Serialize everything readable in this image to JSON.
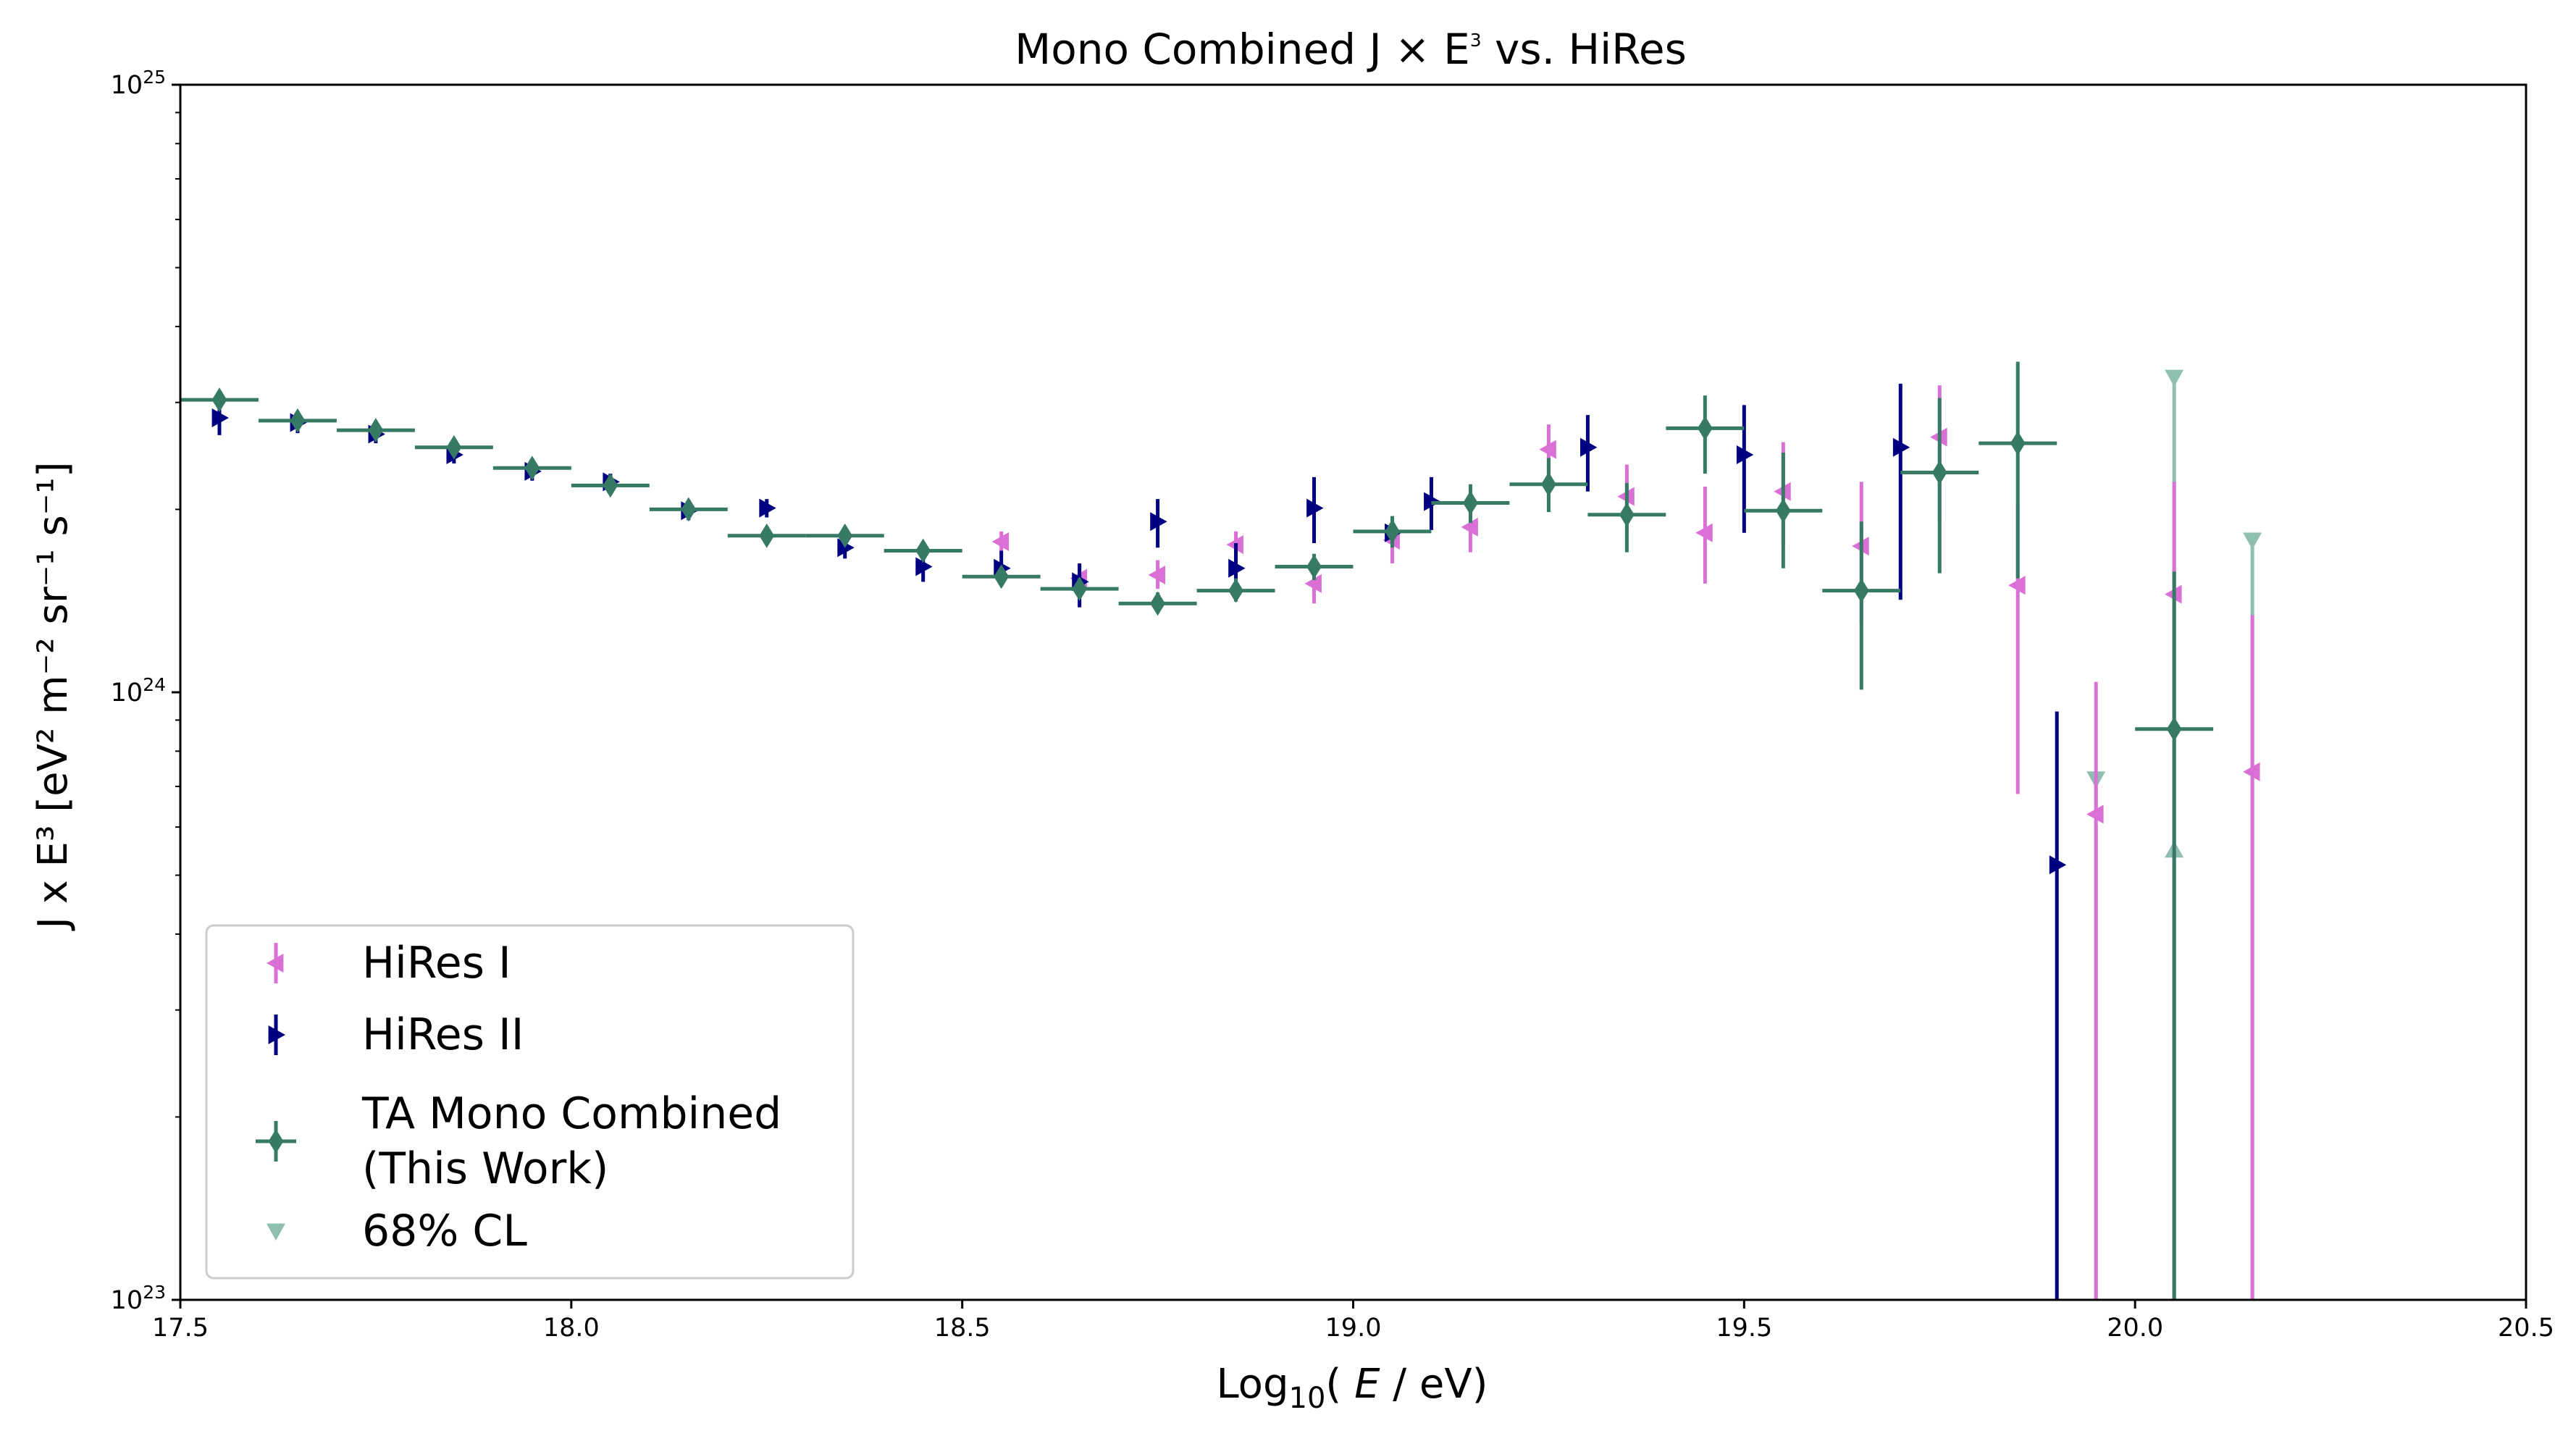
{
  "chart_data": {
    "type": "scatter",
    "title": "Mono Combined J × E³ vs. HiRes",
    "title_parts": {
      "main": "Mono Combined J × E",
      "sup": "3",
      "tail": " vs. HiRes"
    },
    "xlabel": "Log₁₀( E / eV)",
    "xlabel_parts": {
      "pre": "Log",
      "sub": "10",
      "open": "( ",
      "var": "E",
      "post": " / eV)"
    },
    "ylabel": "J x E³ [eV² m⁻² sr⁻¹ s⁻¹]",
    "xlim": [
      17.5,
      20.5
    ],
    "ylim": [
      1e+23,
      1e+25
    ],
    "yscale": "log",
    "grid": false,
    "legend_position": "lower-left",
    "x_ticks": [
      "17.5",
      "18.0",
      "18.5",
      "19.0",
      "19.5",
      "20.0",
      "20.5"
    ],
    "y_ticks": [
      {
        "base": "10",
        "exp": "23",
        "value": 1e+23
      },
      {
        "base": "10",
        "exp": "24",
        "value": 1e+24
      },
      {
        "base": "10",
        "exp": "25",
        "value": 1e+25
      }
    ],
    "series": [
      {
        "name": "HiRes I",
        "marker": "triangle-left",
        "color": "#da70d6",
        "points": [
          {
            "x": 18.55,
            "y": 1.77e+24,
            "ylo": 1.7e+24,
            "yhi": 1.84e+24
          },
          {
            "x": 18.65,
            "y": 1.54e+24,
            "ylo": 1.46e+24,
            "yhi": 1.62e+24
          },
          {
            "x": 18.75,
            "y": 1.56e+24,
            "ylo": 1.48e+24,
            "yhi": 1.65e+24
          },
          {
            "x": 18.85,
            "y": 1.75e+24,
            "ylo": 1.66e+24,
            "yhi": 1.84e+24
          },
          {
            "x": 18.95,
            "y": 1.51e+24,
            "ylo": 1.4e+24,
            "yhi": 1.61e+24
          },
          {
            "x": 19.05,
            "y": 1.78e+24,
            "ylo": 1.63e+24,
            "yhi": 1.93e+24
          },
          {
            "x": 19.15,
            "y": 1.87e+24,
            "ylo": 1.7e+24,
            "yhi": 2.04e+24
          },
          {
            "x": 19.25,
            "y": 2.51e+24,
            "ylo": 2.27e+24,
            "yhi": 2.76e+24
          },
          {
            "x": 19.35,
            "y": 2.1e+24,
            "ylo": 1.85e+24,
            "yhi": 2.37e+24
          },
          {
            "x": 19.45,
            "y": 1.83e+24,
            "ylo": 1.51e+24,
            "yhi": 2.18e+24
          },
          {
            "x": 19.55,
            "y": 2.14e+24,
            "ylo": 1.74e+24,
            "yhi": 2.58e+24
          },
          {
            "x": 19.65,
            "y": 1.74e+24,
            "ylo": 1.3e+24,
            "yhi": 2.22e+24
          },
          {
            "x": 19.75,
            "y": 2.63e+24,
            "ylo": 1.92e+24,
            "yhi": 3.2e+24
          },
          {
            "x": 19.85,
            "y": 1.5e+24,
            "ylo": 6.8e+23,
            "yhi": 2.04e+24
          },
          {
            "x": 19.95,
            "y": 6.3e+23,
            "ylo": 1e+23,
            "yhi": 1.04e+24
          },
          {
            "x": 20.05,
            "y": 1.45e+24,
            "ylo": 1e+23,
            "yhi": 2.22e+24
          },
          {
            "x": 20.15,
            "y": 7.4e+23,
            "ylo": 1e+23,
            "yhi": 1.34e+24
          }
        ]
      },
      {
        "name": "HiRes II",
        "marker": "triangle-right",
        "color": "#000080",
        "points": [
          {
            "x": 17.55,
            "y": 2.83e+24,
            "ylo": 2.65e+24,
            "yhi": 3e+24
          },
          {
            "x": 17.65,
            "y": 2.78e+24,
            "ylo": 2.67e+24,
            "yhi": 2.88e+24
          },
          {
            "x": 17.75,
            "y": 2.66e+24,
            "ylo": 2.57e+24,
            "yhi": 2.75e+24
          },
          {
            "x": 17.85,
            "y": 2.46e+24,
            "ylo": 2.38e+24,
            "yhi": 2.54e+24
          },
          {
            "x": 17.95,
            "y": 2.31e+24,
            "ylo": 2.23e+24,
            "yhi": 2.38e+24
          },
          {
            "x": 18.05,
            "y": 2.22e+24,
            "ylo": 2.14e+24,
            "yhi": 2.29e+24
          },
          {
            "x": 18.15,
            "y": 1.99e+24,
            "ylo": 1.92e+24,
            "yhi": 2.06e+24
          },
          {
            "x": 18.25,
            "y": 2.01e+24,
            "ylo": 1.94e+24,
            "yhi": 2.08e+24
          },
          {
            "x": 18.35,
            "y": 1.73e+24,
            "ylo": 1.66e+24,
            "yhi": 1.81e+24
          },
          {
            "x": 18.45,
            "y": 1.61e+24,
            "ylo": 1.52e+24,
            "yhi": 1.7e+24
          },
          {
            "x": 18.55,
            "y": 1.6e+24,
            "ylo": 1.5e+24,
            "yhi": 1.71e+24
          },
          {
            "x": 18.65,
            "y": 1.52e+24,
            "ylo": 1.38e+24,
            "yhi": 1.63e+24
          },
          {
            "x": 18.75,
            "y": 1.91e+24,
            "ylo": 1.73e+24,
            "yhi": 2.08e+24
          },
          {
            "x": 18.85,
            "y": 1.6e+24,
            "ylo": 1.44e+24,
            "yhi": 1.76e+24
          },
          {
            "x": 18.95,
            "y": 2.01e+24,
            "ylo": 1.76e+24,
            "yhi": 2.26e+24
          },
          {
            "x": 19.05,
            "y": 1.83e+24,
            "ylo": 1.77e+24,
            "yhi": 1.9e+24
          },
          {
            "x": 19.1,
            "y": 2.06e+24,
            "ylo": 1.85e+24,
            "yhi": 2.26e+24
          },
          {
            "x": 19.3,
            "y": 2.53e+24,
            "ylo": 2.14e+24,
            "yhi": 2.86e+24
          },
          {
            "x": 19.5,
            "y": 2.46e+24,
            "ylo": 1.83e+24,
            "yhi": 2.97e+24
          },
          {
            "x": 19.7,
            "y": 2.53e+24,
            "ylo": 1.42e+24,
            "yhi": 3.22e+24
          },
          {
            "x": 19.9,
            "y": 5.2e+23,
            "ylo": 1e+23,
            "yhi": 9.3e+23
          }
        ]
      },
      {
        "name": "TA Mono Combined\n(This Work)",
        "legend_lines": [
          "TA Mono Combined",
          "(This Work)"
        ],
        "marker": "diamond",
        "color": "#367a66",
        "xerr": 0.05,
        "points": [
          {
            "x": 17.55,
            "y": 3.03e+24,
            "ylo": 2.95e+24,
            "yhi": 3.12e+24
          },
          {
            "x": 17.65,
            "y": 2.8e+24,
            "ylo": 2.73e+24,
            "yhi": 2.87e+24
          },
          {
            "x": 17.75,
            "y": 2.7e+24,
            "ylo": 2.64e+24,
            "yhi": 2.77e+24
          },
          {
            "x": 17.85,
            "y": 2.53e+24,
            "ylo": 2.47e+24,
            "yhi": 2.59e+24
          },
          {
            "x": 17.95,
            "y": 2.34e+24,
            "ylo": 2.28e+24,
            "yhi": 2.4e+24
          },
          {
            "x": 18.05,
            "y": 2.19e+24,
            "ylo": 2.13e+24,
            "yhi": 2.25e+24
          },
          {
            "x": 18.15,
            "y": 2e+24,
            "ylo": 1.95e+24,
            "yhi": 2.06e+24
          },
          {
            "x": 18.25,
            "y": 1.81e+24,
            "ylo": 1.76e+24,
            "yhi": 1.86e+24
          },
          {
            "x": 18.35,
            "y": 1.81e+24,
            "ylo": 1.76e+24,
            "yhi": 1.86e+24
          },
          {
            "x": 18.45,
            "y": 1.71e+24,
            "ylo": 1.66e+24,
            "yhi": 1.77e+24
          },
          {
            "x": 18.55,
            "y": 1.55e+24,
            "ylo": 1.5e+24,
            "yhi": 1.6e+24
          },
          {
            "x": 18.65,
            "y": 1.48e+24,
            "ylo": 1.43e+24,
            "yhi": 1.54e+24
          },
          {
            "x": 18.75,
            "y": 1.4e+24,
            "ylo": 1.35e+24,
            "yhi": 1.46e+24
          },
          {
            "x": 18.85,
            "y": 1.47e+24,
            "ylo": 1.41e+24,
            "yhi": 1.54e+24
          },
          {
            "x": 18.95,
            "y": 1.61e+24,
            "ylo": 1.53e+24,
            "yhi": 1.69e+24
          },
          {
            "x": 19.05,
            "y": 1.84e+24,
            "ylo": 1.73e+24,
            "yhi": 1.95e+24
          },
          {
            "x": 19.15,
            "y": 2.05e+24,
            "ylo": 1.9e+24,
            "yhi": 2.2e+24
          },
          {
            "x": 19.25,
            "y": 2.2e+24,
            "ylo": 1.98e+24,
            "yhi": 2.43e+24
          },
          {
            "x": 19.35,
            "y": 1.96e+24,
            "ylo": 1.7e+24,
            "yhi": 2.21e+24
          },
          {
            "x": 19.45,
            "y": 2.72e+24,
            "ylo": 2.29e+24,
            "yhi": 3.08e+24
          },
          {
            "x": 19.55,
            "y": 1.99e+24,
            "ylo": 1.6e+24,
            "yhi": 2.48e+24
          },
          {
            "x": 19.65,
            "y": 1.47e+24,
            "ylo": 1.01e+24,
            "yhi": 1.91e+24
          },
          {
            "x": 19.75,
            "y": 2.3e+24,
            "ylo": 1.57e+24,
            "yhi": 3.05e+24
          },
          {
            "x": 19.85,
            "y": 2.57e+24,
            "ylo": 1.54e+24,
            "yhi": 3.5e+24
          },
          {
            "x": 20.05,
            "y": 8.7e+23,
            "ylo": 1e+23,
            "yhi": 1.58e+24
          }
        ]
      },
      {
        "name": "68% CL",
        "marker": "triangle-down",
        "color": "#8fbfb0",
        "points": [
          {
            "x": 19.95,
            "y": 7.2e+23,
            "ylo": 1e+23,
            "yhi": 7.2e+23
          },
          {
            "x": 20.05,
            "y": 3.3e+24,
            "ylo": 1e+23,
            "yhi": 3.3e+24
          },
          {
            "x": 20.15,
            "y": 1.78e+24,
            "ylo": 1e+23,
            "yhi": 1.78e+24
          }
        ],
        "extra_markers": [
          {
            "x": 20.05,
            "y": 5.5e+23,
            "marker": "triangle-up"
          }
        ]
      }
    ]
  }
}
